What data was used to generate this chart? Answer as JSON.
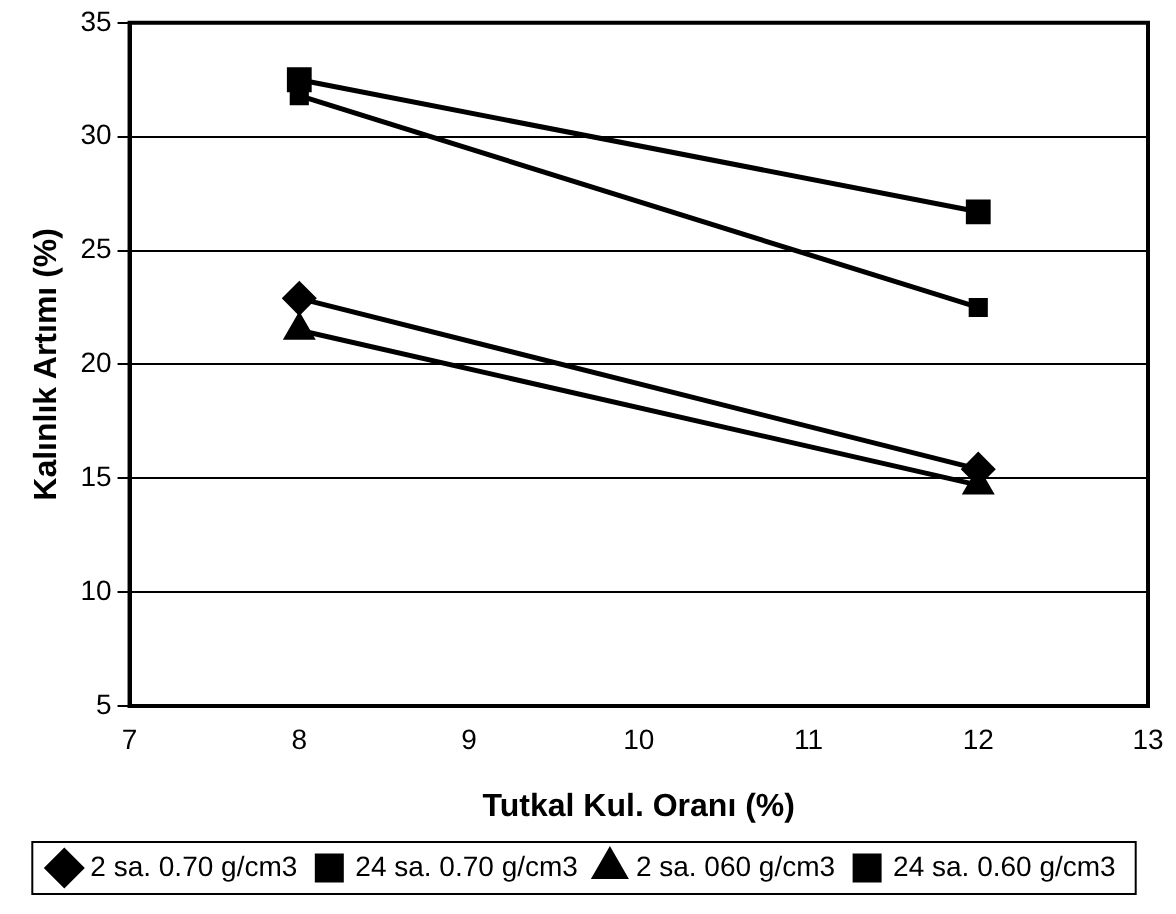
{
  "chart_data": {
    "type": "line",
    "xlabel": "Tutkal Kul. Oranı (%)",
    "ylabel": "Kalınlık Artımı (%)",
    "x": [
      8,
      12
    ],
    "series": [
      {
        "name": "2 sa. 0.70 g/cm3",
        "color": "#000000",
        "marker": "diamond",
        "values": [
          22.9,
          15.4
        ]
      },
      {
        "name": "24 sa. 0.70 g/cm3",
        "color": "#000000",
        "marker": "square",
        "values": [
          32.5,
          26.7
        ]
      },
      {
        "name": "2 sa. 060 g/cm3",
        "color": "#000000",
        "marker": "triangle",
        "values": [
          21.5,
          14.7
        ]
      },
      {
        "name": "24 sa. 0.60 g/cm3",
        "color": "#000000",
        "marker": "square",
        "values": [
          31.8,
          22.5
        ]
      }
    ],
    "xlim": [
      7,
      13
    ],
    "xticks": [
      7,
      8,
      9,
      10,
      11,
      12,
      13
    ],
    "ylim": [
      5,
      35
    ],
    "yticks": [
      5,
      10,
      15,
      20,
      25,
      30,
      35
    ],
    "grid": "y",
    "legend": "bottom",
    "line_style": "solid"
  }
}
